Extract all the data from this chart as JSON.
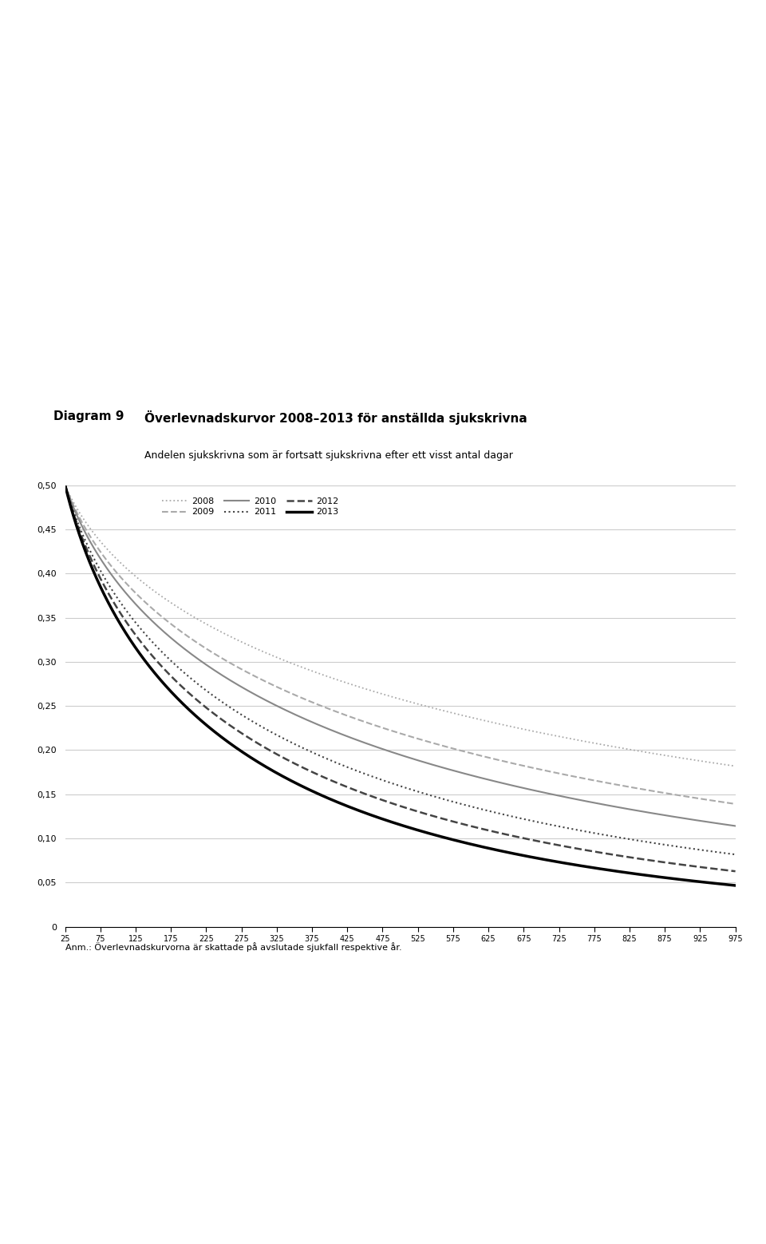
{
  "title": "Överlevnadskurvor 2008–2013 för anställda sjukskrivna",
  "subtitle": "Andelen sjukskrivna som är fortsatt sjukskrivna efter ett visst antal dagar",
  "diagram_label": "Diagram 9",
  "note": "Anm.: Överlevnadskurvorna är skattade på avslutade sjukfall respektive år.",
  "ylim": [
    0,
    0.5
  ],
  "xlim": [
    25,
    975
  ],
  "yticks": [
    0,
    0.05,
    0.1,
    0.15,
    0.2,
    0.25,
    0.3,
    0.35,
    0.4,
    0.45,
    0.5
  ],
  "xticks": [
    25,
    75,
    125,
    175,
    225,
    275,
    325,
    375,
    425,
    475,
    525,
    575,
    625,
    675,
    725,
    775,
    825,
    875,
    925,
    975
  ],
  "years": [
    "2008",
    "2009",
    "2010",
    "2011",
    "2012",
    "2013"
  ],
  "colors": {
    "2008": "#aaaaaa",
    "2009": "#aaaaaa",
    "2010": "#888888",
    "2011": "#444444",
    "2012": "#444444",
    "2013": "#000000"
  },
  "linestyles": {
    "2008": "dotted",
    "2009": "dashed",
    "2010": "solid",
    "2011": "dotted",
    "2012": "dashed",
    "2013": "solid"
  },
  "linewidths": {
    "2008": 1.3,
    "2009": 1.5,
    "2010": 1.5,
    "2011": 1.5,
    "2012": 1.8,
    "2013": 2.5
  },
  "curve_params": {
    "2008": {
      "scale": 700,
      "shape": 0.52
    },
    "2009": {
      "scale": 480,
      "shape": 0.55
    },
    "2010": {
      "scale": 390,
      "shape": 0.57
    },
    "2011": {
      "scale": 290,
      "shape": 0.59
    },
    "2012": {
      "scale": 245,
      "shape": 0.61
    },
    "2013": {
      "scale": 210,
      "shape": 0.63
    }
  },
  "background_color": "#ffffff",
  "grid_color": "#cccccc"
}
